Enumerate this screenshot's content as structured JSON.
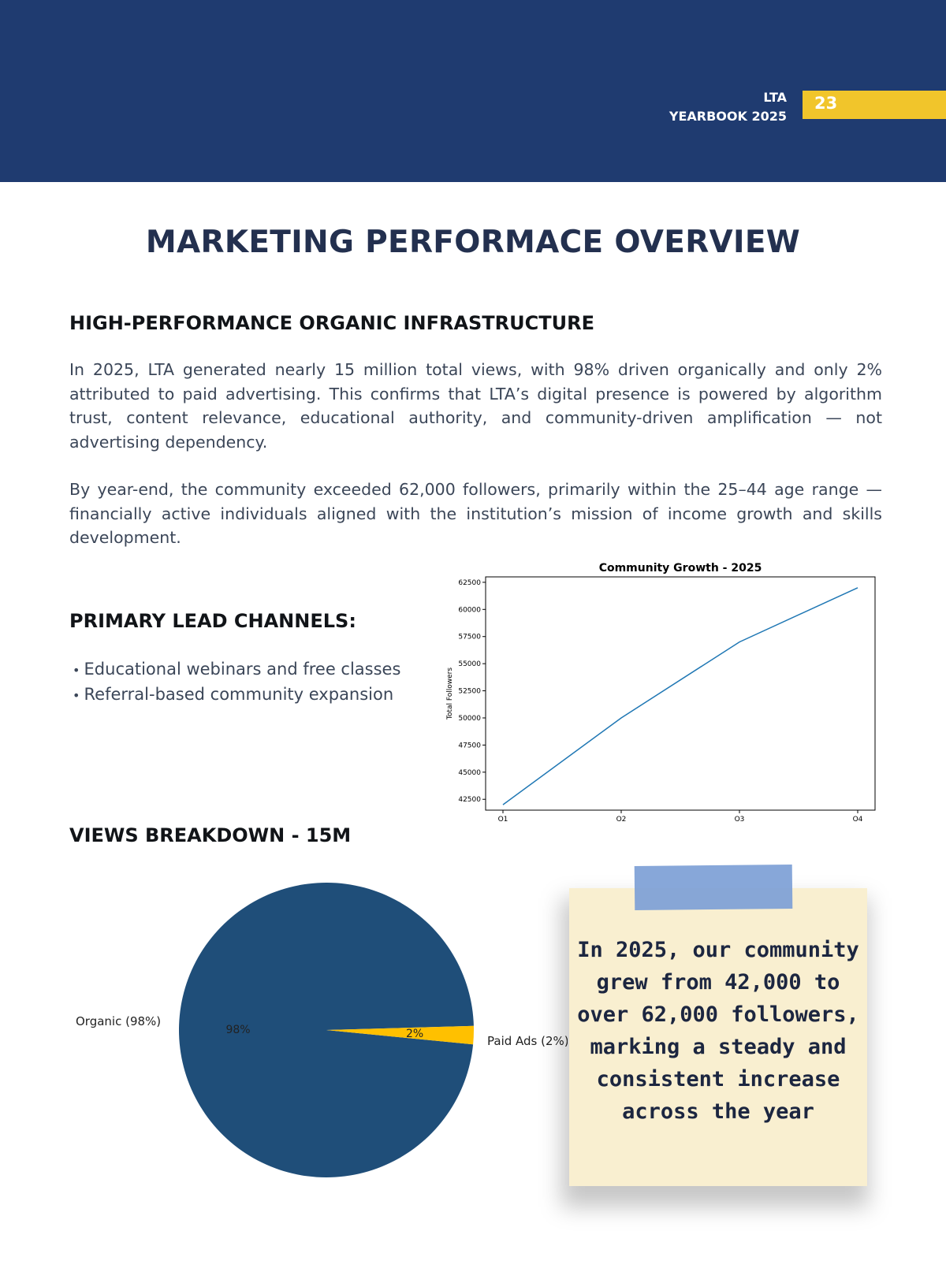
{
  "header": {
    "brand_line1": "LTA",
    "brand_line2": "YEARBOOK 2025",
    "page_number": "23",
    "band_color": "#1f3b70",
    "tab_color": "#f1c52b"
  },
  "page_title": "MARKETING PERFORMACE OVERVIEW",
  "section1": {
    "heading": "HIGH-PERFORMANCE ORGANIC INFRASTRUCTURE",
    "paragraph1": "In 2025, LTA generated nearly 15 million total views, with 98% driven organically and only 2% attributed to paid advertising. This confirms that LTA’s digital presence is powered by algorithm trust, content relevance, educational authority, and community-driven amplification — not advertising dependency.",
    "paragraph2": "By year-end, the community exceeded 62,000 followers, primarily within the 25–44 age range — financially active individuals aligned with the institution’s mission of income growth and skills development."
  },
  "section2": {
    "heading": "PRIMARY LEAD CHANNELS:",
    "bullets": [
      "Educational webinars and free classes",
      "Referral-based community expansion"
    ]
  },
  "section3": {
    "heading": "VIEWS BREAKDOWN - 15M"
  },
  "note": {
    "text": "In 2025, our community grew from 42,000 to over 62,000 followers, marking a steady and consistent increase across the year"
  },
  "chart_data": [
    {
      "type": "line",
      "title": "Community Growth - 2025",
      "xlabel": "",
      "ylabel": "Total Followers",
      "categories": [
        "Q1",
        "Q2",
        "Q3",
        "Q4"
      ],
      "series": [
        {
          "values": [
            42000,
            50000,
            57000,
            62000
          ],
          "color": "#1f77b4"
        }
      ],
      "ylim": [
        41500,
        63000
      ],
      "yticks": [
        42500,
        45000,
        47500,
        50000,
        52500,
        55000,
        57500,
        60000,
        62500
      ],
      "grid": false
    },
    {
      "type": "pie",
      "labels": [
        "Organic (98%)",
        "Paid Ads (2%)"
      ],
      "values": [
        98,
        2
      ],
      "pct_labels": [
        "98%",
        "2%"
      ],
      "colors": [
        "#1f4e79",
        "#ffc000"
      ]
    }
  ]
}
